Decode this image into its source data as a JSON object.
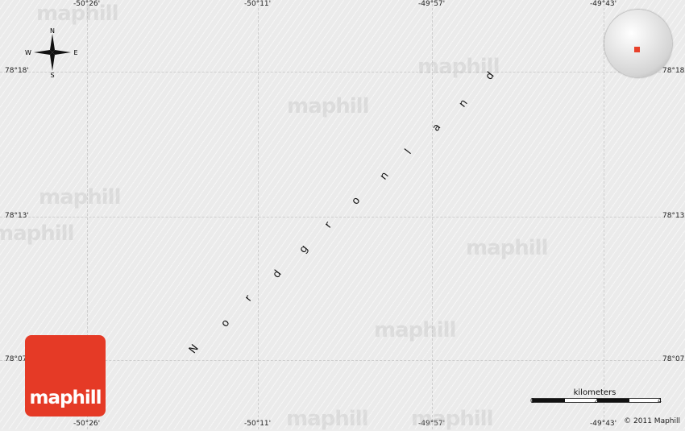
{
  "map": {
    "place_label": "Nordgronland",
    "longitude_labels": [
      "-50°26'",
      "-50°11'",
      "-49°57'",
      "-49°43'"
    ],
    "latitude_labels": [
      "78°18'",
      "78°13'",
      "78°07'"
    ],
    "compass": {
      "n": "N",
      "s": "S",
      "e": "E",
      "w": "W"
    },
    "watermark": "maphill",
    "logo_text": "maphill",
    "scale": {
      "unit": "kilometers",
      "ticks": [
        "0",
        "2",
        "4"
      ]
    },
    "copyright": "© 2011 Maphill",
    "colors": {
      "background": "#ebebeb",
      "logo": "#e53a26",
      "locator": "#e8412b"
    }
  }
}
